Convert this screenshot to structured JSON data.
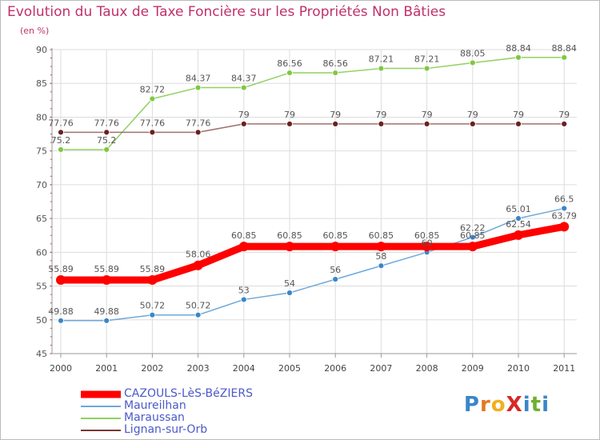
{
  "header": {
    "title": "Evolution du Taux de Taxe Foncière sur les Propriétés Non Bâties",
    "subtitle": "(en %)"
  },
  "logo": {
    "text": "ProXiti",
    "letters": [
      "P",
      "r",
      "o",
      "X",
      "i",
      "t",
      "i"
    ]
  },
  "chart_data": {
    "type": "line",
    "title": "Evolution du Taux de Taxe Foncière sur les Propriétés Non Bâties",
    "ylabel": "(en %)",
    "xlabel": "",
    "ylim": [
      45,
      90
    ],
    "yticks": [
      45,
      50,
      55,
      60,
      65,
      70,
      75,
      80,
      85,
      90
    ],
    "categories": [
      "2000",
      "2001",
      "2002",
      "2003",
      "2004",
      "2005",
      "2006",
      "2007",
      "2008",
      "2009",
      "2010",
      "2011"
    ],
    "legend_position": "bottom-left",
    "series": [
      {
        "name": "CAZOULS-LèS-BéZIERS",
        "color": "#ff0000",
        "values": [
          55.89,
          55.89,
          55.89,
          58.06,
          60.85,
          60.85,
          60.85,
          60.85,
          60.85,
          60.85,
          62.54,
          63.79
        ],
        "labels": [
          "55.89",
          "55.89",
          "55.89",
          "58.06",
          "60.85",
          "60.85",
          "60.85",
          "60.85",
          "60.85",
          "60.85",
          "62.54",
          "63.79"
        ]
      },
      {
        "name": "Maureilhan",
        "color": "#6fa8d8",
        "values": [
          49.88,
          49.88,
          50.72,
          50.72,
          53,
          54,
          56,
          58,
          60,
          62.22,
          65.01,
          66.5
        ],
        "labels": [
          "49.88",
          "49.88",
          "50.72",
          "50.72",
          "53",
          "54",
          "56",
          "58",
          "60",
          "62.22",
          "65.01",
          "66.5"
        ]
      },
      {
        "name": "Maraussan",
        "color": "#90d060",
        "values": [
          75.2,
          75.2,
          82.72,
          84.37,
          84.37,
          86.56,
          86.56,
          87.21,
          87.21,
          88.05,
          88.84,
          88.84
        ],
        "labels": [
          "75.2",
          "75.2",
          "82.72",
          "84.37",
          "84.37",
          "86.56",
          "86.56",
          "87.21",
          "87.21",
          "88.05",
          "88.84",
          "88.84"
        ]
      },
      {
        "name": "Lignan-sur-Orb",
        "color": "#7a3838",
        "values": [
          77.76,
          77.76,
          77.76,
          77.76,
          79,
          79,
          79,
          79,
          79,
          79,
          79,
          79
        ],
        "labels": [
          "77.76",
          "77.76",
          "77.76",
          "77.76",
          "79",
          "79",
          "79",
          "79",
          "79",
          "79",
          "79",
          "79"
        ]
      }
    ]
  }
}
